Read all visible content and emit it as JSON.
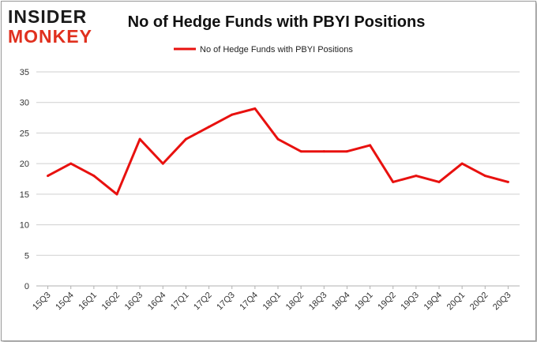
{
  "logo": {
    "line1": "INSIDER",
    "line2": "MONKEY"
  },
  "chart_data": {
    "type": "line",
    "title": "No of Hedge Funds with PBYI Positions",
    "categories": [
      "15Q3",
      "15Q4",
      "16Q1",
      "16Q2",
      "16Q3",
      "16Q4",
      "17Q1",
      "17Q2",
      "17Q3",
      "17Q4",
      "18Q1",
      "18Q2",
      "18Q3",
      "18Q4",
      "19Q1",
      "19Q2",
      "19Q3",
      "19Q4",
      "20Q1",
      "20Q2",
      "20Q3"
    ],
    "series": [
      {
        "name": "No of Hedge Funds with PBYI Positions",
        "values": [
          18,
          20,
          18,
          15,
          24,
          20,
          24,
          26,
          28,
          29,
          24,
          22,
          22,
          22,
          23,
          17,
          18,
          17,
          20,
          18,
          17
        ],
        "color": "#e8110f"
      }
    ],
    "ylim": [
      0,
      35
    ],
    "yticks": [
      0,
      5,
      10,
      15,
      20,
      25,
      30,
      35
    ],
    "grid": true,
    "legend": "top-center"
  }
}
